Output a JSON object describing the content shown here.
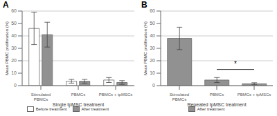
{
  "chart_data": [
    {
      "type": "bar",
      "title": "A",
      "xlabel": "Single tpMSC treatment",
      "ylabel": "Mean PBMC proliferation (%)",
      "categories": [
        "Stimulated\nPBMCs",
        "PBMCs",
        "PBMCs + tpMSCs"
      ],
      "series": [
        {
          "name": "Before treatment",
          "color": "#ffffff",
          "values": [
            46,
            3.5,
            4.5
          ],
          "errors": [
            13,
            1.5,
            2.0
          ]
        },
        {
          "name": "After treatment",
          "color": "#919191",
          "values": [
            41,
            3.5,
            2.5
          ],
          "errors": [
            10,
            1.5,
            1.5
          ]
        }
      ],
      "ylim": [
        0,
        60
      ],
      "yticks": [
        0,
        10,
        20,
        30,
        40,
        50,
        60
      ],
      "grid": true,
      "legend": "bottom"
    },
    {
      "type": "bar",
      "title": "B",
      "xlabel": "Repeated tpMSC treatment",
      "ylabel": "Mean PBMC proliferation (%)",
      "categories": [
        "Stimulated\nPBMCs",
        "PBMCs",
        "PBMCs + tpMSCs"
      ],
      "series": [
        {
          "name": "After treatment",
          "color": "#919191",
          "values": [
            38,
            4.5,
            1.5
          ],
          "errors": [
            9,
            2.0,
            0.8
          ]
        }
      ],
      "ylim": [
        0,
        60
      ],
      "yticks": [
        0,
        10,
        20,
        30,
        40,
        50,
        60
      ],
      "grid": true,
      "legend": "bottom",
      "annotations": [
        {
          "text": "*",
          "from": "PBMCs",
          "to": "PBMCs + tpMSCs",
          "y": 13
        }
      ]
    }
  ]
}
